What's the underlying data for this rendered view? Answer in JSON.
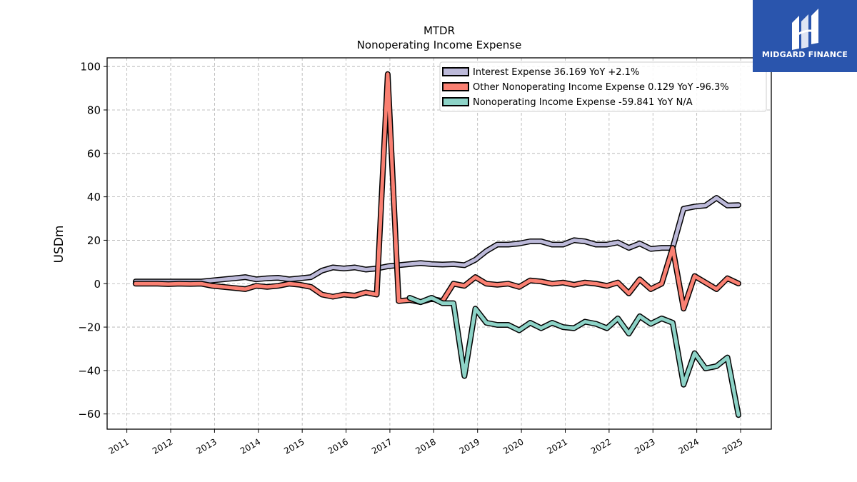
{
  "brand": {
    "name": "MIDGARD FINANCE",
    "bg": "#2a55ad"
  },
  "chart_data": {
    "type": "line",
    "title": "MTDR",
    "subtitle": "Nonoperating Income Expense",
    "ylabel": "USDm",
    "xlabel": "",
    "xlim": [
      2010.55,
      2025.7
    ],
    "ylim": [
      -67,
      104
    ],
    "yticks": [
      -60,
      -40,
      -20,
      0,
      20,
      40,
      60,
      80,
      100
    ],
    "ytick_labels": [
      "−60",
      "−40",
      "−20",
      "0",
      "20",
      "40",
      "60",
      "80",
      "100"
    ],
    "xticks": [
      2011,
      2012,
      2013,
      2014,
      2015,
      2016,
      2017,
      2018,
      2019,
      2020,
      2021,
      2022,
      2023,
      2024,
      2025
    ],
    "xtick_labels": [
      "2011",
      "2012",
      "2013",
      "2014",
      "2015",
      "2016",
      "2017",
      "2018",
      "2019",
      "2020",
      "2021",
      "2022",
      "2023",
      "2024",
      "2025"
    ],
    "grid": true,
    "legend_position": "top-right",
    "series": [
      {
        "name": "Interest Expense  36.169 YoY +2.1%",
        "color": "#bcb9d9",
        "points": [
          [
            2011.2,
            1
          ],
          [
            2011.45,
            1
          ],
          [
            2011.7,
            1
          ],
          [
            2011.95,
            1
          ],
          [
            2012.2,
            1
          ],
          [
            2012.45,
            1
          ],
          [
            2012.7,
            1
          ],
          [
            2012.95,
            1.5
          ],
          [
            2013.2,
            2
          ],
          [
            2013.45,
            2.5
          ],
          [
            2013.7,
            3
          ],
          [
            2013.95,
            2
          ],
          [
            2014.2,
            2.5
          ],
          [
            2014.45,
            2.7
          ],
          [
            2014.7,
            2
          ],
          [
            2014.95,
            2.5
          ],
          [
            2015.2,
            3
          ],
          [
            2015.45,
            6
          ],
          [
            2015.7,
            7.5
          ],
          [
            2015.95,
            7
          ],
          [
            2016.2,
            7.5
          ],
          [
            2016.45,
            6.5
          ],
          [
            2016.7,
            7
          ],
          [
            2016.95,
            8
          ],
          [
            2017.2,
            8.5
          ],
          [
            2017.45,
            9
          ],
          [
            2017.7,
            9.5
          ],
          [
            2017.95,
            9
          ],
          [
            2018.2,
            8.8
          ],
          [
            2018.45,
            9
          ],
          [
            2018.7,
            8.5
          ],
          [
            2018.95,
            11
          ],
          [
            2019.2,
            15
          ],
          [
            2019.45,
            18
          ],
          [
            2019.7,
            18
          ],
          [
            2019.95,
            18.5
          ],
          [
            2020.2,
            19.5
          ],
          [
            2020.45,
            19.5
          ],
          [
            2020.7,
            18
          ],
          [
            2020.95,
            18
          ],
          [
            2021.2,
            20
          ],
          [
            2021.45,
            19.5
          ],
          [
            2021.7,
            18
          ],
          [
            2021.95,
            18
          ],
          [
            2022.2,
            19
          ],
          [
            2022.45,
            16.5
          ],
          [
            2022.7,
            18.5
          ],
          [
            2022.95,
            16
          ],
          [
            2023.2,
            16.5
          ],
          [
            2023.45,
            16.5
          ],
          [
            2023.7,
            34.5
          ],
          [
            2023.95,
            35.5
          ],
          [
            2024.2,
            36
          ],
          [
            2024.45,
            39.5
          ],
          [
            2024.7,
            36
          ],
          [
            2024.95,
            36.2
          ]
        ]
      },
      {
        "name": "Other Nonoperating Income Expense  0.129 YoY -96.3%",
        "color": "#fa8072",
        "points": [
          [
            2011.2,
            0
          ],
          [
            2011.45,
            0
          ],
          [
            2011.7,
            0
          ],
          [
            2011.95,
            -0.2
          ],
          [
            2012.2,
            0
          ],
          [
            2012.45,
            -0.1
          ],
          [
            2012.7,
            0
          ],
          [
            2012.95,
            -1
          ],
          [
            2013.2,
            -1.5
          ],
          [
            2013.45,
            -2
          ],
          [
            2013.7,
            -2.5
          ],
          [
            2013.95,
            -1
          ],
          [
            2014.2,
            -1.5
          ],
          [
            2014.45,
            -1
          ],
          [
            2014.7,
            0
          ],
          [
            2014.95,
            -0.5
          ],
          [
            2015.2,
            -1.5
          ],
          [
            2015.45,
            -5
          ],
          [
            2015.7,
            -6
          ],
          [
            2015.95,
            -5
          ],
          [
            2016.2,
            -5.5
          ],
          [
            2016.45,
            -4
          ],
          [
            2016.7,
            -5
          ],
          [
            2016.95,
            96.5
          ],
          [
            2017.2,
            -8
          ],
          [
            2017.45,
            -7.5
          ],
          [
            2017.7,
            -8.5
          ],
          [
            2017.95,
            -7
          ],
          [
            2018.2,
            -8
          ],
          [
            2018.45,
            0
          ],
          [
            2018.7,
            -1
          ],
          [
            2018.95,
            3
          ],
          [
            2019.2,
            0
          ],
          [
            2019.45,
            -0.5
          ],
          [
            2019.7,
            0
          ],
          [
            2019.95,
            -1.5
          ],
          [
            2020.2,
            1.5
          ],
          [
            2020.45,
            1
          ],
          [
            2020.7,
            0
          ],
          [
            2020.95,
            0.5
          ],
          [
            2021.2,
            -0.5
          ],
          [
            2021.45,
            0.5
          ],
          [
            2021.7,
            0
          ],
          [
            2021.95,
            -1
          ],
          [
            2022.2,
            0.5
          ],
          [
            2022.45,
            -4.5
          ],
          [
            2022.7,
            2
          ],
          [
            2022.95,
            -2.5
          ],
          [
            2023.2,
            0
          ],
          [
            2023.45,
            16.5
          ],
          [
            2023.7,
            -11.5
          ],
          [
            2023.95,
            3.5
          ],
          [
            2024.2,
            0.5
          ],
          [
            2024.45,
            -2.5
          ],
          [
            2024.7,
            2.5
          ],
          [
            2024.95,
            0.1
          ]
        ]
      },
      {
        "name": "Nonoperating Income Expense  -59.841 YoY N/A",
        "color": "#8dd3c7",
        "points": [
          [
            2017.45,
            -6.5
          ],
          [
            2017.7,
            -8.5
          ],
          [
            2017.95,
            -6.5
          ],
          [
            2018.2,
            -9
          ],
          [
            2018.45,
            -9
          ],
          [
            2018.7,
            -42.5
          ],
          [
            2018.95,
            -11.5
          ],
          [
            2019.2,
            -18
          ],
          [
            2019.45,
            -19
          ],
          [
            2019.7,
            -19
          ],
          [
            2019.95,
            -21.5
          ],
          [
            2020.2,
            -18
          ],
          [
            2020.45,
            -20.5
          ],
          [
            2020.7,
            -18
          ],
          [
            2020.95,
            -20
          ],
          [
            2021.2,
            -20.5
          ],
          [
            2021.45,
            -17.5
          ],
          [
            2021.7,
            -18.5
          ],
          [
            2021.95,
            -20.5
          ],
          [
            2022.2,
            -16
          ],
          [
            2022.45,
            -23
          ],
          [
            2022.7,
            -15
          ],
          [
            2022.95,
            -18.5
          ],
          [
            2023.2,
            -16
          ],
          [
            2023.45,
            -18
          ],
          [
            2023.7,
            -46.5
          ],
          [
            2023.95,
            -32
          ],
          [
            2024.2,
            -39
          ],
          [
            2024.45,
            -38
          ],
          [
            2024.7,
            -34
          ],
          [
            2024.95,
            -60.5
          ]
        ]
      }
    ]
  }
}
